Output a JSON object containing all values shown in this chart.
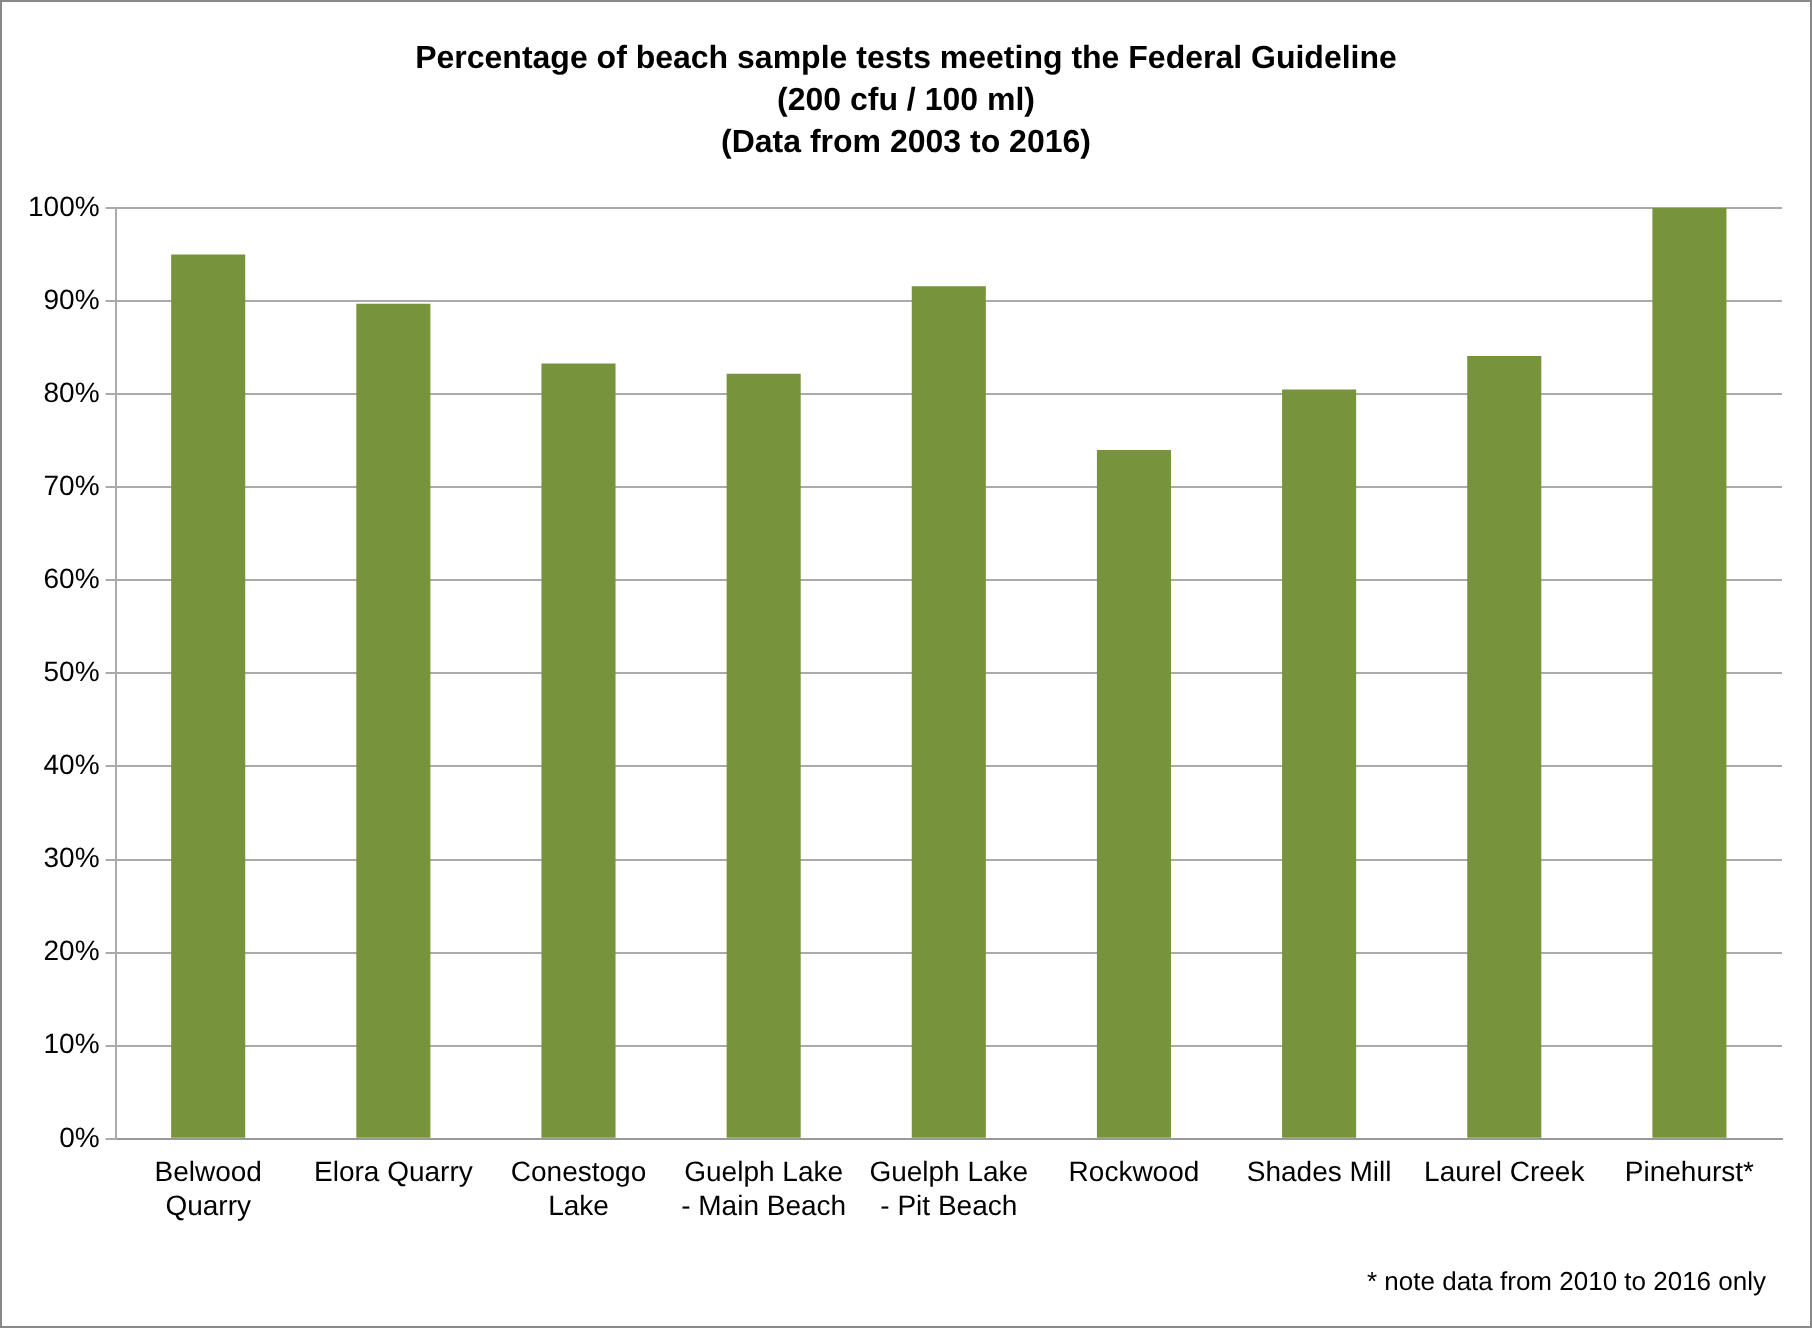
{
  "chart_data": {
    "type": "bar",
    "title": [
      "Percentage of beach sample tests meeting the Federal Guideline",
      "(200 cfu / 100 ml)",
      "(Data from 2003 to 2016)"
    ],
    "categories": [
      "Belwood Quarry",
      "Elora Quarry",
      "Conestogo Lake",
      "Guelph Lake - Main Beach",
      "Guelph Lake - Pit Beach",
      "Rockwood",
      "Shades Mill",
      "Laurel Creek",
      "Pinehurst*"
    ],
    "values": [
      95,
      89.7,
      83.3,
      82.2,
      91.6,
      74,
      80.5,
      84.1,
      100
    ],
    "color": "#77933c",
    "ylim": [
      0,
      100
    ],
    "yticks": [
      {
        "value": 0,
        "label": "0%"
      },
      {
        "value": 10,
        "label": "10%"
      },
      {
        "value": 20,
        "label": "20%"
      },
      {
        "value": 30,
        "label": "30%"
      },
      {
        "value": 40,
        "label": "40%"
      },
      {
        "value": 50,
        "label": "50%"
      },
      {
        "value": 60,
        "label": "60%"
      },
      {
        "value": 70,
        "label": "70%"
      },
      {
        "value": 80,
        "label": "80%"
      },
      {
        "value": 90,
        "label": "90%"
      },
      {
        "value": 100,
        "label": "100%"
      }
    ],
    "grid": "y",
    "legend": false,
    "annotations": [
      "* note data from 2010 to 2016 only"
    ]
  }
}
